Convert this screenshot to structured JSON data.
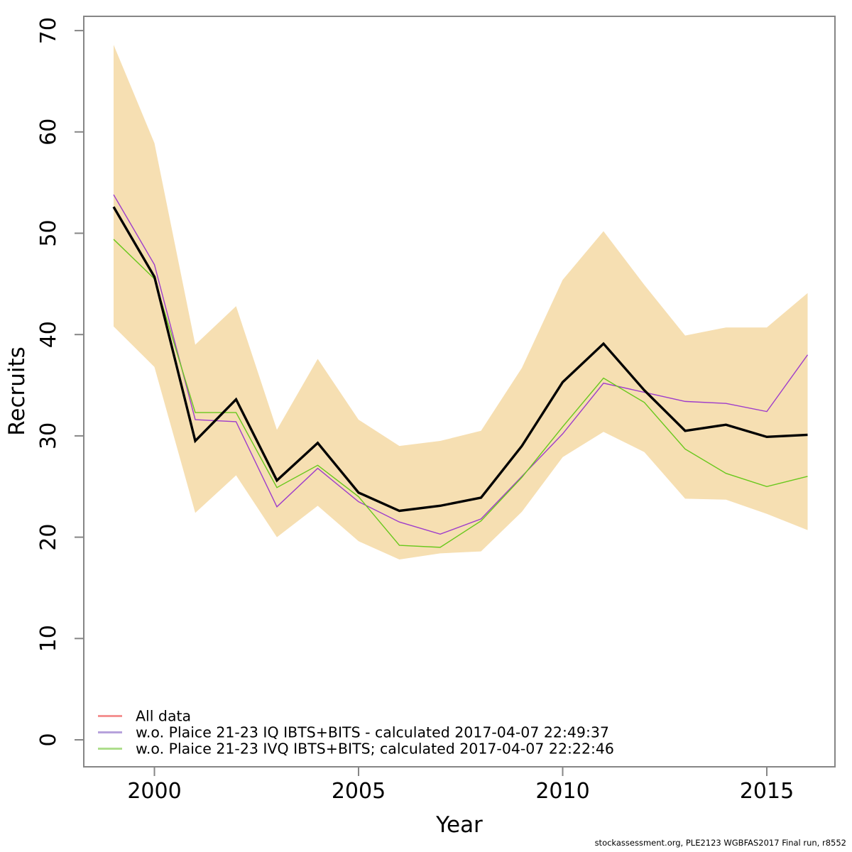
{
  "footer": "stockassessment.org, PLE2123 WGBFAS2017 Final run, r8552",
  "legend": {
    "items": [
      {
        "label": "All data",
        "swatch": "#f49292"
      },
      {
        "label": "w.o. Plaice 21-23 IQ IBTS+BITS - calculated 2017-04-07 22:49:37",
        "swatch": "#b7a2dc"
      },
      {
        "label": "w.o. Plaice 21-23 IVQ IBTS+BITS; calculated 2017-04-07 22:22:46",
        "swatch": "#aede8c"
      }
    ]
  },
  "chart_data": {
    "type": "line",
    "title": "",
    "xlabel": "Year",
    "ylabel": "Recruits",
    "x": [
      1999,
      2000,
      2001,
      2002,
      2003,
      2004,
      2005,
      2006,
      2007,
      2008,
      2009,
      2010,
      2011,
      2012,
      2013,
      2014,
      2015,
      2016
    ],
    "x_ticks": [
      2000,
      2005,
      2010,
      2015
    ],
    "y_ticks": [
      0,
      10,
      20,
      30,
      40,
      50,
      60,
      70
    ],
    "xlim": [
      1998.3,
      2016.7
    ],
    "ylim": [
      0,
      71.4
    ],
    "grid": false,
    "legend_position": "bottom-left",
    "axis_color": "#868686",
    "band": {
      "name": "base-run-confidence-interval",
      "fill": "#f6dfb2",
      "upper": [
        68.6,
        58.9,
        39.0,
        42.8,
        30.6,
        37.6,
        31.6,
        29.0,
        29.5,
        30.5,
        36.7,
        45.4,
        50.2,
        44.9,
        39.9,
        40.7,
        40.7,
        44.1
      ],
      "lower": [
        40.8,
        36.8,
        22.4,
        26.1,
        20.0,
        23.1,
        19.6,
        17.8,
        18.4,
        18.6,
        22.5,
        27.9,
        30.4,
        28.4,
        23.8,
        23.7,
        22.3,
        20.7
      ]
    },
    "series": [
      {
        "name": "All data",
        "color": "#000000",
        "stroke_width": 3.4,
        "values": [
          52.6,
          45.7,
          29.5,
          33.6,
          25.6,
          29.3,
          24.4,
          22.6,
          23.1,
          23.9,
          29.0,
          35.3,
          39.1,
          34.5,
          30.5,
          31.1,
          29.9,
          30.1
        ]
      },
      {
        "name": "w.o. Plaice 21-23 IQ IBTS+BITS",
        "color": "#9e3ccb",
        "stroke_width": 1.4,
        "values": [
          53.8,
          46.9,
          31.6,
          31.4,
          23.0,
          26.8,
          23.5,
          21.5,
          20.3,
          21.8,
          26.0,
          30.2,
          35.2,
          34.3,
          33.4,
          33.2,
          32.4,
          38.0
        ]
      },
      {
        "name": "w.o. Plaice 21-23 IVQ IBTS+BITS",
        "color": "#68c81c",
        "stroke_width": 1.4,
        "values": [
          49.4,
          45.5,
          32.3,
          32.3,
          24.9,
          27.1,
          24.0,
          19.2,
          19.0,
          21.6,
          25.9,
          30.9,
          35.7,
          33.3,
          28.7,
          26.3,
          25.0,
          26.0
        ]
      }
    ]
  }
}
